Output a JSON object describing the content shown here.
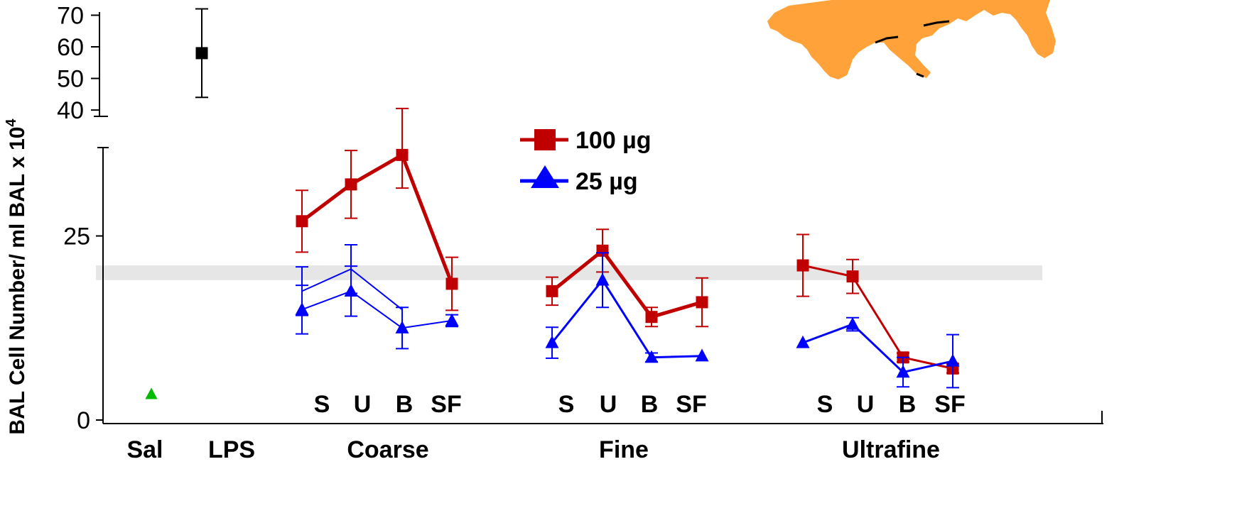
{
  "chart_data": {
    "type": "line",
    "ylabel": "BAL Cell Number/ ml BAL x 10",
    "ylabel_superscript": "4",
    "y_ticks_lower": [
      "0",
      "25"
    ],
    "y_ticks_upper": [
      "40",
      "50",
      "60",
      "70"
    ],
    "ylim_lower": [
      0,
      37
    ],
    "ylim_upper": [
      38,
      71
    ],
    "groups": [
      "Sal",
      "LPS",
      "Coarse",
      "Fine",
      "Ultrafine"
    ],
    "sub_categories": [
      "S",
      "U",
      "B",
      "SF"
    ],
    "legend": [
      {
        "label": "100 µg",
        "color": "#c00000",
        "marker": "square"
      },
      {
        "label": "25 µg",
        "color": "#0000ff",
        "marker": "triangle"
      }
    ],
    "band": {
      "low": 19,
      "high": 21,
      "color": "#e6e6e6"
    },
    "controls": [
      {
        "group": "Sal",
        "value": 3.5,
        "err": 0,
        "color": "#00bb00",
        "marker": "triangle"
      },
      {
        "group": "LPS",
        "value": 58,
        "err": 14,
        "color": "#000000",
        "marker": "square"
      }
    ],
    "series": [
      {
        "name": "100 µg",
        "group": "Coarse",
        "color": "#c00000",
        "marker": "square",
        "width": 5,
        "values": [
          27,
          32,
          36,
          18.5
        ],
        "errors": [
          4.2,
          4.6,
          4.5,
          3.6
        ]
      },
      {
        "name": "100 µg",
        "group": "Fine",
        "color": "#c00000",
        "marker": "square",
        "width": 5,
        "values": [
          17.5,
          23,
          14,
          16
        ],
        "errors": [
          1.9,
          2.9,
          1.3,
          3.3
        ]
      },
      {
        "name": "100 µg",
        "group": "Ultrafine",
        "color": "#c00000",
        "marker": "square",
        "width": 3,
        "values": [
          21,
          19.5,
          8.5,
          7
        ],
        "errors": [
          4.2,
          2.3,
          0.6,
          0.6
        ]
      },
      {
        "name": "25 µg",
        "group": "Coarse",
        "color": "#0000ff",
        "marker": "none",
        "width": 2,
        "values": [
          17.5,
          20.5,
          15
        ],
        "errors": [
          3.3,
          3.3,
          0
        ]
      },
      {
        "name": "25 µg",
        "group": "Coarse",
        "color": "#0000ff",
        "marker": "triangle",
        "width": 2,
        "values": [
          15,
          17.5,
          12.5,
          13.5
        ],
        "errors": [
          3.3,
          3.4,
          2.8,
          0.8
        ]
      },
      {
        "name": "25 µg",
        "group": "Fine",
        "color": "#0000ff",
        "marker": "triangle",
        "width": 3,
        "values": [
          10.5,
          19,
          8.5,
          8.7
        ],
        "errors": [
          2.1,
          3.7,
          0.6,
          0
        ]
      },
      {
        "name": "25 µg",
        "group": "Ultrafine",
        "color": "#0000ff",
        "marker": "triangle",
        "width": 3,
        "values": [
          10.5,
          13,
          6.5,
          8
        ],
        "errors": [
          0,
          0.9,
          2,
          3.6
        ]
      }
    ],
    "grid": false
  }
}
